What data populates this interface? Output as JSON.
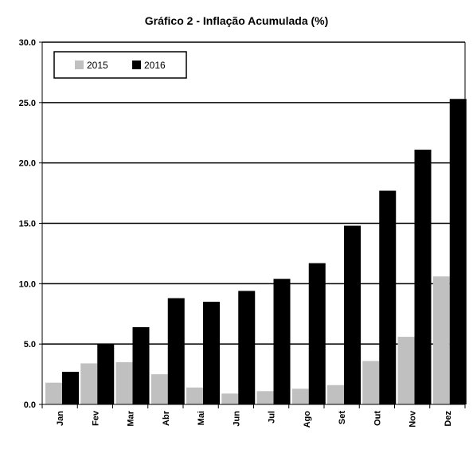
{
  "chart_data": {
    "type": "bar",
    "title": "Gráfico 2 - Inflação Acumulada (%)",
    "categories": [
      "Jan",
      "Fev",
      "Mar",
      "Abr",
      "Mai",
      "Jun",
      "Jul",
      "Ago",
      "Set",
      "Out",
      "Nov",
      "Dez"
    ],
    "series": [
      {
        "name": "2015",
        "color": "#c0c0c0",
        "values": [
          1.8,
          3.4,
          3.5,
          2.5,
          1.4,
          0.9,
          1.1,
          1.3,
          1.6,
          3.6,
          5.6,
          10.6
        ]
      },
      {
        "name": "2016",
        "color": "#000000",
        "values": [
          2.7,
          5.0,
          6.4,
          8.8,
          8.5,
          9.4,
          10.4,
          11.7,
          14.8,
          17.7,
          21.1,
          25.3
        ]
      }
    ],
    "ylim": [
      0,
      30
    ],
    "yticks": [
      "0.0",
      "5.0",
      "10.0",
      "15.0",
      "20.0",
      "25.0",
      "30.0"
    ],
    "ytick_values": [
      0,
      5,
      10,
      15,
      20,
      25,
      30
    ],
    "grid": true,
    "legend_position": "top-left"
  }
}
